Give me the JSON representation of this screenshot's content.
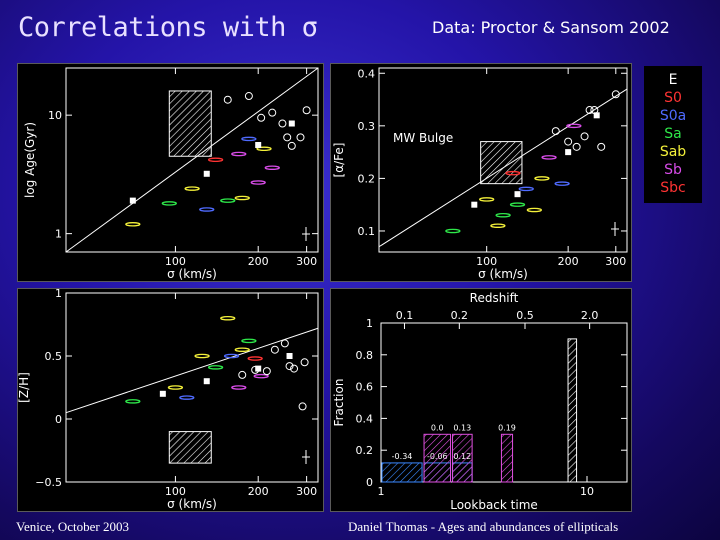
{
  "slide": {
    "title": "Correlations with σ",
    "data_credit": "Data: Proctor & Sansom 2002",
    "footer_left": "Venice, October 2003",
    "footer_center": "Daniel Thomas - Ages and abundances of ellipticals"
  },
  "legend": [
    {
      "label": "E",
      "color": "#ffffff"
    },
    {
      "label": "S0",
      "color": "#ff3333"
    },
    {
      "label": "S0a",
      "color": "#4f6bff"
    },
    {
      "label": "Sa",
      "color": "#2ee84a"
    },
    {
      "label": "Sab",
      "color": "#f4f13a"
    },
    {
      "label": "Sb",
      "color": "#d84ce8"
    },
    {
      "label": "Sbc",
      "color": "#ff3333"
    }
  ],
  "chart_data": [
    {
      "type": "scatter",
      "xlabel": "σ (km/s)",
      "ylabel": "log Age(Gyr)",
      "xticks": [
        "100",
        "200",
        "300"
      ],
      "yticks": [
        "1",
        "10"
      ],
      "fit_line": {
        "x": [
          40,
          330
        ],
        "y": [
          0.7,
          25
        ]
      },
      "squares": {
        "x": [
          70,
          130,
          200,
          265
        ],
        "y": [
          1.9,
          3.2,
          5.6,
          8.5
        ]
      },
      "circles": {
        "x": [
          155,
          185,
          205,
          225,
          245,
          255,
          265,
          285,
          300
        ],
        "y": [
          13.5,
          14.5,
          9.5,
          10.5,
          8.5,
          6.5,
          5.5,
          6.5,
          11
        ]
      },
      "dashes": {
        "x": [
          70,
          95,
          115,
          130,
          140,
          155,
          170,
          175,
          185,
          200,
          210,
          225
        ],
        "y": [
          1.2,
          1.8,
          2.4,
          1.6,
          4.2,
          1.9,
          4.7,
          2.0,
          6.3,
          2.7,
          5.2,
          3.6
        ],
        "colors": [
          "#f4f13a",
          "#2ee84a",
          "#f4f13a",
          "#4f6bff",
          "#ff3333",
          "#2ee84a",
          "#d84ce8",
          "#f4f13a",
          "#4f6bff",
          "#d84ce8",
          "#f4f13a",
          "#d84ce8"
        ]
      },
      "bulge_box": {
        "x": [
          95,
          135
        ],
        "y": [
          4.5,
          16
        ]
      }
    },
    {
      "type": "scatter",
      "xlabel": "σ (km/s)",
      "ylabel": "[α/Fe]",
      "xticks": [
        "100",
        "200",
        "300"
      ],
      "yticks": [
        "0.1",
        "0.2",
        "0.3",
        "0.4"
      ],
      "annotation": "MW Bulge",
      "fit_line": {
        "x": [
          40,
          330
        ],
        "y": [
          0.07,
          0.37
        ]
      },
      "squares": {
        "x": [
          90,
          130,
          200,
          255
        ],
        "y": [
          0.15,
          0.17,
          0.25,
          0.32
        ]
      },
      "circles": {
        "x": [
          180,
          200,
          215,
          230,
          240,
          250,
          265,
          300
        ],
        "y": [
          0.29,
          0.27,
          0.26,
          0.28,
          0.33,
          0.33,
          0.26,
          0.36
        ]
      },
      "dashes": {
        "x": [
          75,
          100,
          110,
          115,
          125,
          130,
          140,
          150,
          160,
          170,
          190,
          210
        ],
        "y": [
          0.1,
          0.16,
          0.11,
          0.13,
          0.21,
          0.15,
          0.18,
          0.14,
          0.2,
          0.24,
          0.19,
          0.3
        ],
        "colors": [
          "#2ee84a",
          "#f4f13a",
          "#f4f13a",
          "#2ee84a",
          "#ff3333",
          "#2ee84a",
          "#4f6bff",
          "#f4f13a",
          "#f4f13a",
          "#d84ce8",
          "#4f6bff",
          "#d84ce8"
        ]
      },
      "bulge_box": {
        "x": [
          95,
          135
        ],
        "y": [
          0.19,
          0.27
        ]
      }
    },
    {
      "type": "scatter",
      "xlabel": "σ (km/s)",
      "ylabel": "[Z/H]",
      "xticks": [
        "100",
        "200",
        "300"
      ],
      "yticks": [
        "−0.5",
        "0",
        "0.5",
        "1"
      ],
      "fit_line": {
        "x": [
          40,
          330
        ],
        "y": [
          0.05,
          0.72
        ]
      },
      "squares": {
        "x": [
          90,
          130,
          200,
          260
        ],
        "y": [
          0.2,
          0.3,
          0.4,
          0.5
        ]
      },
      "circles": {
        "x": [
          175,
          195,
          215,
          230,
          250,
          260,
          270,
          290,
          295
        ],
        "y": [
          0.35,
          0.39,
          0.38,
          0.55,
          0.6,
          0.42,
          0.4,
          0.1,
          0.45
        ]
      },
      "dashes": {
        "x": [
          70,
          100,
          110,
          125,
          140,
          155,
          160,
          170,
          175,
          185,
          195,
          205
        ],
        "y": [
          0.14,
          0.25,
          0.17,
          0.5,
          0.41,
          0.8,
          0.5,
          0.25,
          0.55,
          0.62,
          0.48,
          0.34
        ],
        "colors": [
          "#2ee84a",
          "#f4f13a",
          "#4f6bff",
          "#f4f13a",
          "#2ee84a",
          "#f4f13a",
          "#4f6bff",
          "#d84ce8",
          "#f4f13a",
          "#2ee84a",
          "#ff3333",
          "#d84ce8"
        ]
      },
      "bulge_box": {
        "x": [
          95,
          135
        ],
        "y": [
          -0.35,
          -0.1
        ]
      }
    },
    {
      "type": "bar",
      "xlabel": "Lookback time",
      "ylabel": "Fraction",
      "top_label": "Redshift",
      "top_ticks": [
        "0.1",
        "0.2",
        "0.5",
        "2.0"
      ],
      "xticks": [
        "1",
        "10"
      ],
      "yticks": [
        "0",
        "0.2",
        "0.4",
        "0.6",
        "0.8",
        "1"
      ],
      "ylim": [
        0,
        1
      ],
      "bars": [
        {
          "x_range": [
            1.0,
            1.6
          ],
          "value": 0.12,
          "label": "-0.34",
          "color": "#3a88ff"
        },
        {
          "x_range": [
            1.6,
            2.2
          ],
          "value": 0.12,
          "label": "-0.06",
          "color": "#3a88ff"
        },
        {
          "x_range": [
            2.2,
            2.8
          ],
          "value": 0.12,
          "label": "0.12",
          "color": "#3a88ff"
        },
        {
          "x_range": [
            1.6,
            2.2
          ],
          "value": 0.3,
          "label": "0.0",
          "color": "#e050e0"
        },
        {
          "x_range": [
            2.2,
            2.8
          ],
          "value": 0.3,
          "label": "0.13",
          "color": "#e050e0"
        },
        {
          "x_range": [
            3.8,
            4.4
          ],
          "value": 0.3,
          "label": "0.19",
          "color": "#e050e0"
        },
        {
          "x_range": [
            8.0,
            9.0
          ],
          "value": 0.9,
          "label": "",
          "color": "#ffffff"
        }
      ]
    }
  ]
}
